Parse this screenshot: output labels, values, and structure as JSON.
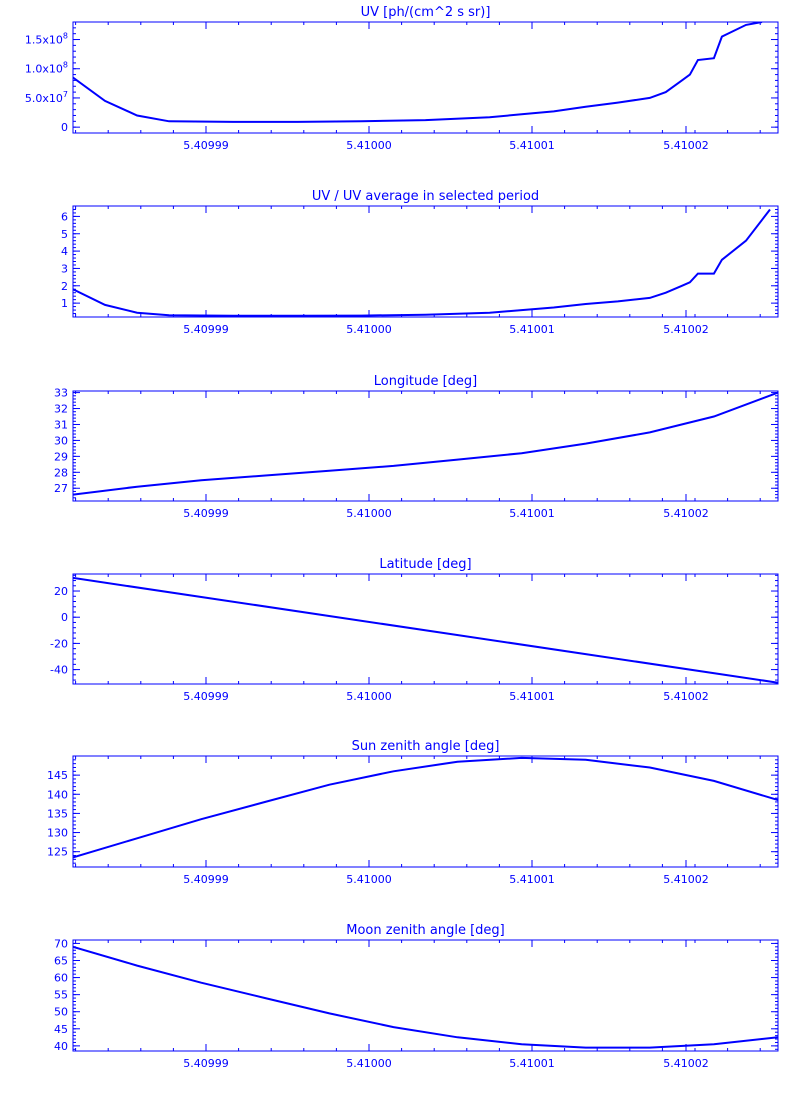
{
  "x_tick_labels": [
    "5.40999",
    "5.41000",
    "5.41001",
    "5.41002"
  ],
  "colors": {
    "axis": "#0000ff",
    "line": "#0000ff",
    "background": "#ffffff"
  },
  "chart_data": [
    {
      "type": "line",
      "title": "UV [ph/(cm^2 s sr)]",
      "xlabel": "",
      "ylabel": "",
      "xlim": [
        5.409982,
        5.410026
      ],
      "ylim": [
        -10000000,
        180000000
      ],
      "grid": false,
      "y_ticks": [
        0,
        50000000,
        100000000,
        150000000
      ],
      "y_tick_labels": [
        "0",
        "5.0x10^7",
        "1.0x10^8",
        "1.5x10^8"
      ],
      "x": [
        5.409982,
        5.409984,
        5.409986,
        5.409988,
        5.409992,
        5.409996,
        5.41,
        5.410004,
        5.410008,
        5.41001,
        5.410012,
        5.410014,
        5.410016,
        5.410018,
        5.410019,
        5.41002,
        5.4100205,
        5.410021,
        5.410022,
        5.4100225,
        5.410024,
        5.410025
      ],
      "y": [
        85000000,
        45000000,
        20000000,
        10000000,
        9000000,
        9000000,
        10000000,
        12000000,
        17000000,
        22000000,
        27000000,
        35000000,
        42000000,
        50000000,
        60000000,
        80000000,
        90000000,
        115000000,
        118000000,
        155000000,
        175000000,
        180000000
      ]
    },
    {
      "type": "line",
      "title": "UV / UV average in selected period",
      "xlabel": "",
      "ylabel": "",
      "xlim": [
        5.409982,
        5.410026
      ],
      "ylim": [
        0.2,
        6.6
      ],
      "grid": false,
      "y_ticks": [
        1,
        2,
        3,
        4,
        5,
        6
      ],
      "y_tick_labels": [
        "1",
        "2",
        "3",
        "4",
        "5",
        "6"
      ],
      "x": [
        5.409982,
        5.409984,
        5.409986,
        5.409988,
        5.409992,
        5.409996,
        5.41,
        5.410004,
        5.410008,
        5.41001,
        5.410012,
        5.410014,
        5.410016,
        5.410018,
        5.410019,
        5.41002,
        5.4100205,
        5.410021,
        5.410022,
        5.4100225,
        5.410024,
        5.4100255
      ],
      "y": [
        1.8,
        0.9,
        0.45,
        0.3,
        0.27,
        0.27,
        0.28,
        0.33,
        0.45,
        0.6,
        0.75,
        0.95,
        1.1,
        1.3,
        1.6,
        2.0,
        2.2,
        2.7,
        2.7,
        3.5,
        4.6,
        6.4
      ]
    },
    {
      "type": "line",
      "title": "Longitude [deg]",
      "xlabel": "",
      "ylabel": "",
      "xlim": [
        5.409982,
        5.410026
      ],
      "ylim": [
        26.2,
        33.1
      ],
      "grid": false,
      "y_ticks": [
        27,
        28,
        29,
        30,
        31,
        32,
        33
      ],
      "y_tick_labels": [
        "27",
        "28",
        "29",
        "30",
        "31",
        "32",
        "33"
      ],
      "x": [
        5.409982,
        5.409986,
        5.40999,
        5.409994,
        5.409998,
        5.410002,
        5.410006,
        5.41001,
        5.410014,
        5.410018,
        5.410022,
        5.410026
      ],
      "y": [
        26.6,
        27.1,
        27.5,
        27.8,
        28.1,
        28.4,
        28.8,
        29.2,
        29.8,
        30.5,
        31.5,
        33.0
      ]
    },
    {
      "type": "line",
      "title": "Latitude [deg]",
      "xlabel": "",
      "ylabel": "",
      "xlim": [
        5.409982,
        5.410026
      ],
      "ylim": [
        -51,
        33
      ],
      "grid": false,
      "y_ticks": [
        -40,
        -20,
        0,
        20
      ],
      "y_tick_labels": [
        "-40",
        "-20",
        "0",
        "20"
      ],
      "x": [
        5.409982,
        5.410026
      ],
      "y": [
        30,
        -50
      ]
    },
    {
      "type": "line",
      "title": "Sun zenith angle [deg]",
      "xlabel": "",
      "ylabel": "",
      "xlim": [
        5.409982,
        5.410026
      ],
      "ylim": [
        121,
        150
      ],
      "grid": false,
      "y_ticks": [
        125,
        130,
        135,
        140,
        145
      ],
      "y_tick_labels": [
        "125",
        "130",
        "135",
        "140",
        "145"
      ],
      "x": [
        5.409982,
        5.409986,
        5.40999,
        5.409994,
        5.409998,
        5.410002,
        5.410006,
        5.41001,
        5.410014,
        5.410018,
        5.410022,
        5.410026
      ],
      "y": [
        123.5,
        128.5,
        133.5,
        138.0,
        142.5,
        146.0,
        148.5,
        149.5,
        149.0,
        147.0,
        143.5,
        138.5
      ]
    },
    {
      "type": "line",
      "title": "Moon zenith angle [deg]",
      "xlabel": "",
      "ylabel": "",
      "xlim": [
        5.409982,
        5.410026
      ],
      "ylim": [
        38.5,
        71
      ],
      "grid": false,
      "y_ticks": [
        40,
        45,
        50,
        55,
        60,
        65,
        70
      ],
      "y_tick_labels": [
        "40",
        "45",
        "50",
        "55",
        "60",
        "65",
        "70"
      ],
      "x": [
        5.409982,
        5.409986,
        5.40999,
        5.409994,
        5.409998,
        5.410002,
        5.410006,
        5.41001,
        5.410014,
        5.410018,
        5.410022,
        5.410026
      ],
      "y": [
        69.0,
        63.5,
        58.5,
        54.0,
        49.5,
        45.5,
        42.5,
        40.5,
        39.5,
        39.5,
        40.5,
        42.5
      ]
    }
  ]
}
